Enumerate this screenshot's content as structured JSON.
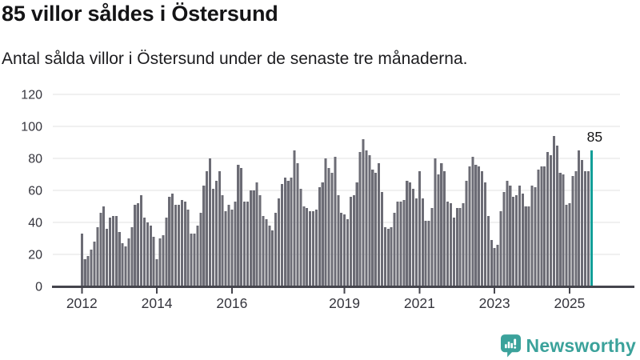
{
  "header": {
    "title": "85 villor såldes i Östersund",
    "subtitle": "Antal sålda villor i Östersund under de senaste tre månaderna."
  },
  "branding": {
    "wordmark": "Newsworthy"
  },
  "colors": {
    "bar": "#6c6c75",
    "highlight": "#129e98",
    "grid": "#e2e2e2",
    "axis": "#45454d",
    "tick_label": "#35353d",
    "annotation_text": "#141416",
    "logo": "#3ba29b"
  },
  "chart_data": {
    "type": "bar",
    "title": "85 villor såldes i Östersund",
    "subtitle": "Antal sålda villor i Östersund under de senaste tre månaderna.",
    "ylabel": "",
    "xlabel": "",
    "frequency": "monthly",
    "x_start": "2012-01",
    "x_end": "2025-08",
    "ylim": [
      0,
      120
    ],
    "yticks": [
      0,
      20,
      40,
      60,
      80,
      100,
      120
    ],
    "xticks": [
      {
        "label": "2012",
        "index": 0
      },
      {
        "label": "2014",
        "index": 24
      },
      {
        "label": "2016",
        "index": 48
      },
      {
        "label": "2019",
        "index": 84
      },
      {
        "label": "2021",
        "index": 108
      },
      {
        "label": "2023",
        "index": 132
      },
      {
        "label": "2025",
        "index": 156
      }
    ],
    "grid": "horizontal",
    "legend": "none",
    "highlight": {
      "index": 163,
      "value": 85,
      "label": "85"
    },
    "series": [
      {
        "name": "Antal sålda villor",
        "values": [
          33,
          17,
          19,
          23,
          28,
          37,
          46,
          50,
          36,
          43,
          44,
          44,
          34,
          27,
          25,
          30,
          37,
          51,
          52,
          57,
          43,
          40,
          38,
          31,
          17,
          30,
          32,
          43,
          56,
          58,
          51,
          51,
          54,
          53,
          48,
          33,
          33,
          38,
          46,
          63,
          72,
          80,
          61,
          66,
          72,
          57,
          47,
          51,
          48,
          53,
          76,
          74,
          53,
          53,
          60,
          60,
          65,
          57,
          44,
          42,
          38,
          35,
          46,
          55,
          64,
          68,
          66,
          68,
          85,
          77,
          61,
          50,
          49,
          47,
          47,
          48,
          62,
          65,
          80,
          74,
          71,
          81,
          57,
          46,
          45,
          42,
          56,
          57,
          65,
          84,
          92,
          85,
          82,
          73,
          71,
          77,
          59,
          37,
          36,
          37,
          46,
          53,
          53,
          54,
          66,
          65,
          61,
          55,
          72,
          55,
          41,
          41,
          49,
          80,
          70,
          77,
          72,
          53,
          52,
          43,
          49,
          49,
          52,
          66,
          75,
          81,
          76,
          75,
          72,
          65,
          44,
          29,
          24,
          26,
          47,
          59,
          66,
          63,
          56,
          57,
          63,
          58,
          50,
          50,
          63,
          62,
          73,
          75,
          75,
          84,
          82,
          94,
          88,
          71,
          70,
          51,
          52,
          69,
          72,
          85,
          79,
          72,
          72,
          85
        ]
      }
    ]
  }
}
